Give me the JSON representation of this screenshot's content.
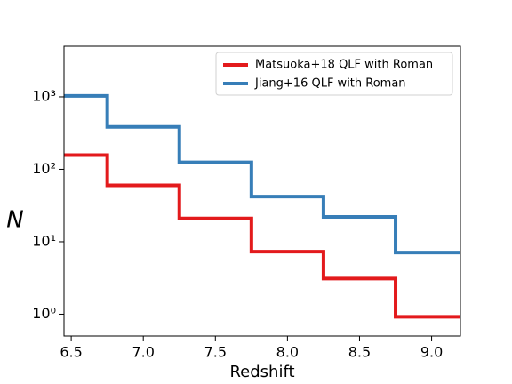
{
  "chart_data": {
    "type": "step",
    "step": "mid",
    "xlabel": "Redshift",
    "ylabel": "N",
    "x": [
      6.5,
      7.0,
      7.5,
      8.0,
      8.5,
      9.0
    ],
    "series": [
      {
        "name": "Matsuoka+18 QLF with Roman",
        "color": "#e31a1c",
        "values": [
          157,
          60,
          21,
          7.3,
          3.1,
          0.92
        ]
      },
      {
        "name": "Jiang+16 QLF with Roman",
        "color": "#377eb8",
        "values": [
          1030,
          385,
          125,
          42,
          22,
          7.1
        ]
      }
    ],
    "xlim": [
      6.45,
      9.2
    ],
    "xticks": [
      6.5,
      {
        "value": 7.0,
        "label": "7.0"
      },
      7.5,
      {
        "value": 8.0,
        "label": "8.0"
      },
      8.5,
      {
        "value": 9.0,
        "label": "9.0"
      }
    ],
    "ylim": [
      0.5,
      5000
    ],
    "ylog": true,
    "yticks": [
      {
        "value": 1,
        "label": "10⁰"
      },
      {
        "value": 10,
        "label": "10¹"
      },
      {
        "value": 100,
        "label": "10²"
      },
      {
        "value": 1000,
        "label": "10³"
      }
    ],
    "legend": "upper right",
    "grid": false
  }
}
